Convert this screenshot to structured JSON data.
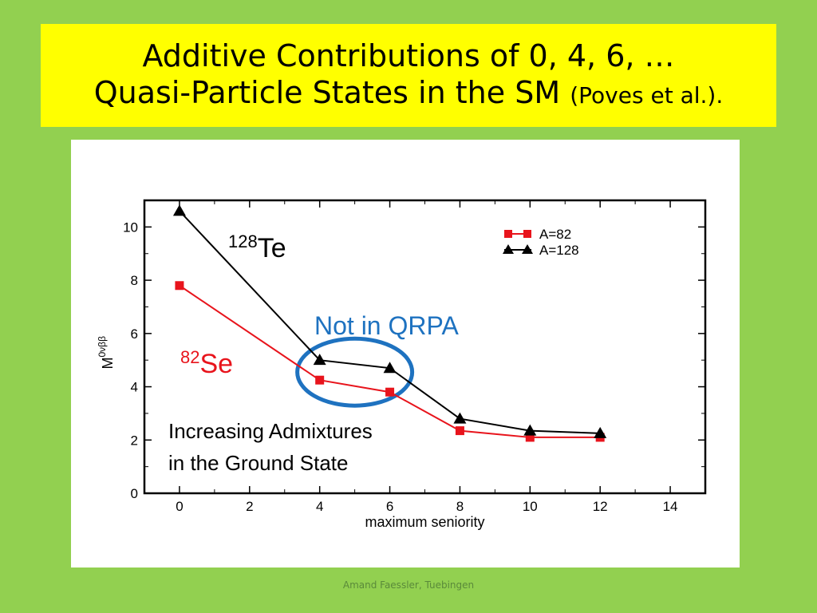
{
  "slide": {
    "title_line1": "Additive Contributions of 0, 4, 6, …",
    "title_line2_main": "Quasi-Particle States in the SM",
    "title_line2_small": "(Poves et al.).",
    "footer": "Amand Faessler, Tuebingen"
  },
  "chart_data": {
    "type": "line",
    "title": "",
    "xlabel": "maximum seniority",
    "ylabel": "M",
    "ylabel_sup": "0νββ",
    "xlim": [
      -1,
      15
    ],
    "ylim": [
      0,
      11
    ],
    "xticks": [
      0,
      2,
      4,
      6,
      8,
      10,
      12,
      14
    ],
    "yticks": [
      0,
      2,
      4,
      6,
      8,
      10
    ],
    "grid": false,
    "legend_position": "top-right",
    "series": [
      {
        "name": "A=82",
        "color": "#e8141c",
        "marker": "square",
        "x": [
          0,
          4,
          6,
          8,
          10,
          12
        ],
        "y": [
          7.8,
          4.25,
          3.8,
          2.35,
          2.1,
          2.1
        ]
      },
      {
        "name": "A=128",
        "color": "#000000",
        "marker": "triangle",
        "x": [
          0,
          4,
          6,
          8,
          10,
          12
        ],
        "y": [
          10.6,
          5.0,
          4.7,
          2.8,
          2.35,
          2.25
        ]
      }
    ],
    "annotations": {
      "te_sup": "128",
      "te_text": "Te",
      "se_sup": "82",
      "se_text": "Se",
      "qrpa": "Not in QRPA",
      "admix_line1": "Increasing Admixtures",
      "admix_line2": "in the Ground State"
    },
    "colors": {
      "se": "#e8141c",
      "qrpa": "#1e72c0",
      "ellipse": "#1e72c0"
    }
  }
}
